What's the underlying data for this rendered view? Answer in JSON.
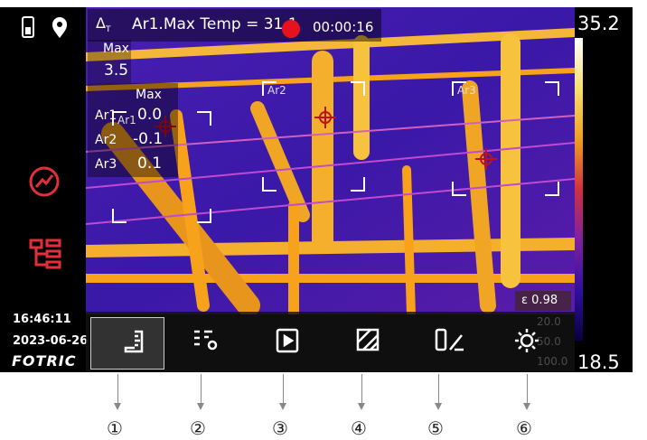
{
  "status": {
    "delta": "Δ",
    "delta_sub": "T",
    "readout": "Ar1.Max Temp = 31.1",
    "timer": "00:00:16"
  },
  "max_panel": {
    "label": "Max",
    "value": "3.5"
  },
  "area_table": {
    "header": "Max",
    "rows": [
      [
        "Ar1",
        "0.0"
      ],
      [
        "Ar2",
        "-0.1"
      ],
      [
        "Ar3",
        "0.1"
      ]
    ]
  },
  "areas": [
    "Ar1",
    "Ar2",
    "Ar3"
  ],
  "scale": {
    "max": "35.2",
    "min": "18.5"
  },
  "sidebar": {
    "time": "16:46:11",
    "date": "2023-06-26",
    "brand": "FOTRIC"
  },
  "params": {
    "emissivity": "ε 0.98",
    "faint": [
      "20.0",
      "50.0",
      "100.0"
    ]
  },
  "callouts": [
    "①",
    "②",
    "③",
    "④",
    "⑤",
    "⑥"
  ]
}
